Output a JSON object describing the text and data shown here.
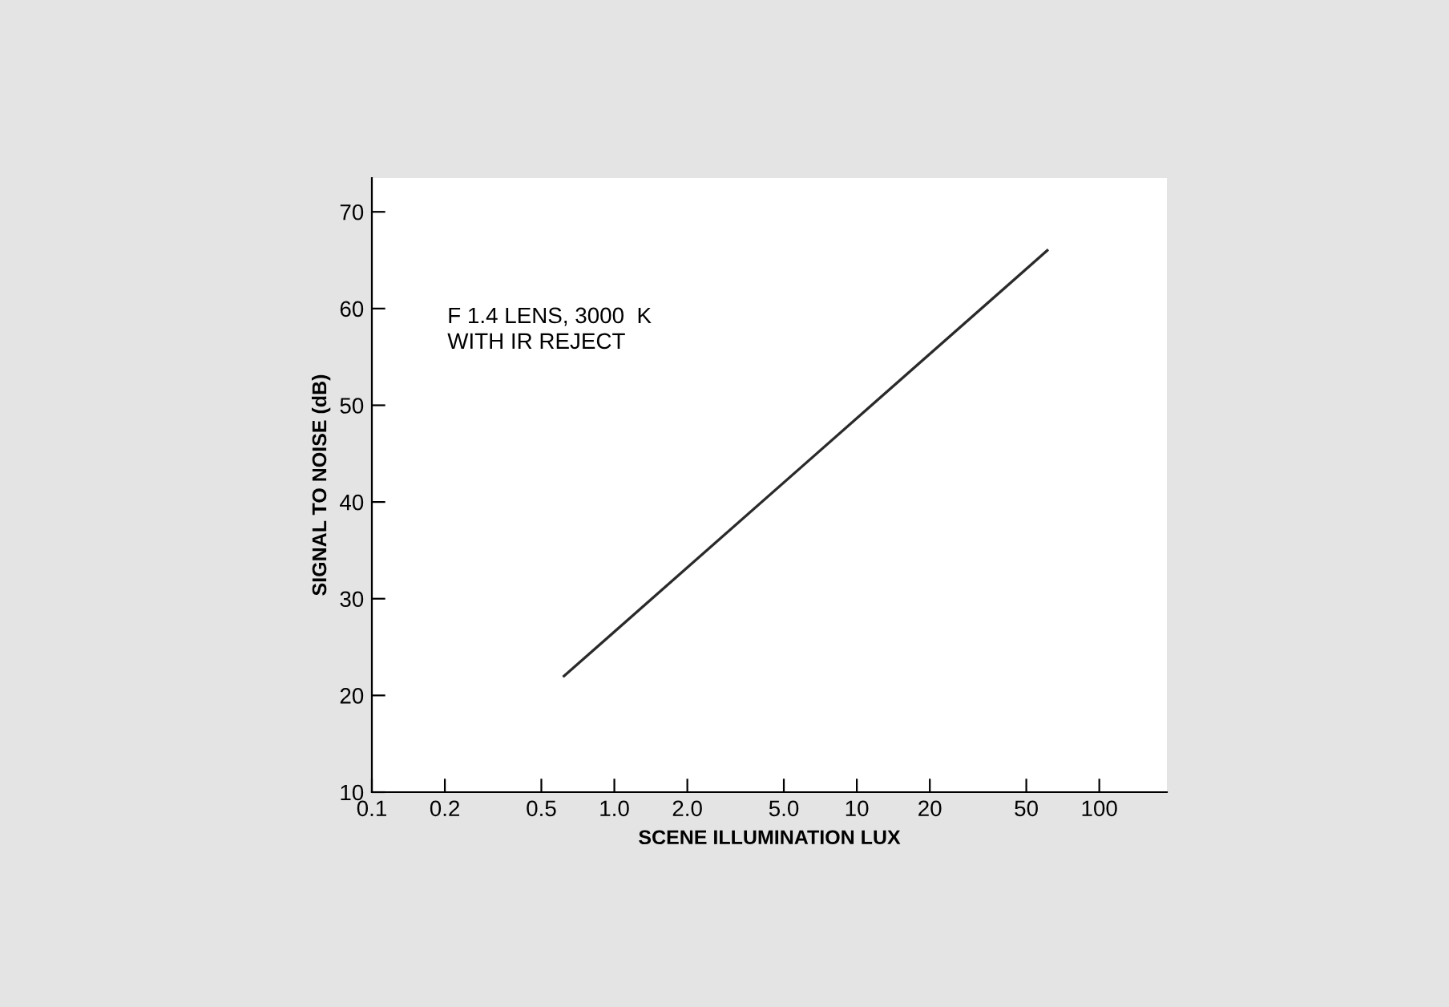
{
  "chart_data": {
    "type": "line",
    "xlabel": "SCENE ILLUMINATION LUX",
    "ylabel": "SIGNAL TO NOISE (dB)",
    "log": "x",
    "x": [
      0.62,
      61
    ],
    "series": [
      {
        "color": "#2a2a2a",
        "values": [
          22,
          66
        ]
      }
    ],
    "xlim": [
      0.1,
      190
    ],
    "ylim": [
      10,
      73.5
    ],
    "xticks": [
      0.1,
      0.2,
      0.5,
      {
        "value": 1,
        "label": "1.0"
      },
      {
        "value": 2,
        "label": "2.0"
      },
      {
        "value": 5,
        "label": "5.0"
      },
      10,
      20,
      50,
      100
    ],
    "yticks": [
      10,
      20,
      30,
      40,
      50,
      60,
      70
    ],
    "annotations": [
      "F 1.4 LENS, 3000  K\nWITH IR REJECT"
    ],
    "grid": false,
    "legend": false
  }
}
